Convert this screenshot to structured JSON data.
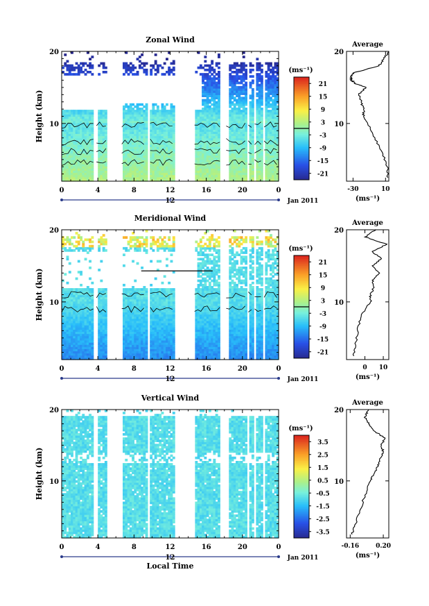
{
  "common": {
    "ylabel": "Height (km)",
    "yticks": [
      "20",
      "10"
    ],
    "xticks": [
      "0",
      "4",
      "8",
      "12",
      "16",
      "20",
      "0"
    ],
    "day_label": "12",
    "month_label": "Jan 2011",
    "xlabel": "Local Time",
    "unit_label": "(ms⁻¹)",
    "avg_title": "Average",
    "avg_unit": "(ms⁻¹)"
  },
  "chart_data": [
    {
      "type": "heatmap",
      "title": "Zonal Wind",
      "ylabel": "Height (km)",
      "ylim": [
        2,
        20
      ],
      "xlim": [
        0,
        24
      ],
      "colorbar_ticks": [
        "21",
        "15",
        "9",
        "3",
        "-3",
        "-9",
        "-15",
        "-21"
      ],
      "colorbar_range": [
        -24,
        24
      ],
      "profile": {
        "title": "Average",
        "xticks": [
          "-30",
          "10"
        ],
        "xlim": [
          -38,
          14
        ],
        "heights": [
          2.5,
          4,
          6,
          8,
          10,
          11,
          12,
          13,
          14,
          15,
          15.5,
          16,
          16.5,
          17,
          18,
          19,
          20
        ],
        "values": [
          13,
          12,
          6,
          -3,
          -12,
          -17,
          -17,
          -20,
          -23,
          -14,
          -27,
          -32,
          -33,
          -30,
          2,
          8,
          14
        ]
      }
    },
    {
      "type": "heatmap",
      "title": "Meridional Wind",
      "ylabel": "Height (km)",
      "ylim": [
        2,
        20
      ],
      "xlim": [
        0,
        24
      ],
      "colorbar_ticks": [
        "21",
        "15",
        "9",
        "3",
        "-3",
        "-9",
        "-15",
        "-21"
      ],
      "colorbar_range": [
        -24,
        24
      ],
      "profile": {
        "title": "Average",
        "xticks": [
          "0",
          "10"
        ],
        "xlim": [
          -10,
          13
        ],
        "heights": [
          2.5,
          4,
          6,
          8,
          10,
          11,
          12,
          13,
          14,
          15,
          16,
          17,
          18,
          19,
          20
        ],
        "values": [
          -6,
          -5,
          -4,
          -2,
          3,
          3,
          5,
          4,
          8,
          4,
          9,
          4,
          12,
          0,
          6
        ]
      }
    },
    {
      "type": "heatmap",
      "title": "Vertical Wind",
      "ylabel": "Height (km)",
      "ylim": [
        2,
        20
      ],
      "xlim": [
        0,
        24
      ],
      "xlabel": "Local Time",
      "colorbar_ticks": [
        "3.5",
        "2.5",
        "1.5",
        "0.5",
        "-0.5",
        "-1.5",
        "-2.5",
        "-3.5"
      ],
      "colorbar_range": [
        -4,
        4
      ],
      "profile": {
        "title": "Average",
        "xticks": [
          "-0.16",
          "0.20"
        ],
        "xlim": [
          -0.2,
          0.26
        ],
        "heights": [
          2.5,
          4,
          6,
          8,
          10,
          11,
          12,
          13,
          14,
          15,
          16,
          17,
          18,
          19,
          20
        ],
        "values": [
          -0.14,
          -0.1,
          -0.05,
          0.0,
          0.06,
          0.1,
          0.14,
          0.16,
          0.2,
          0.18,
          0.22,
          0.1,
          0.04,
          0.0,
          0.04
        ]
      }
    }
  ]
}
